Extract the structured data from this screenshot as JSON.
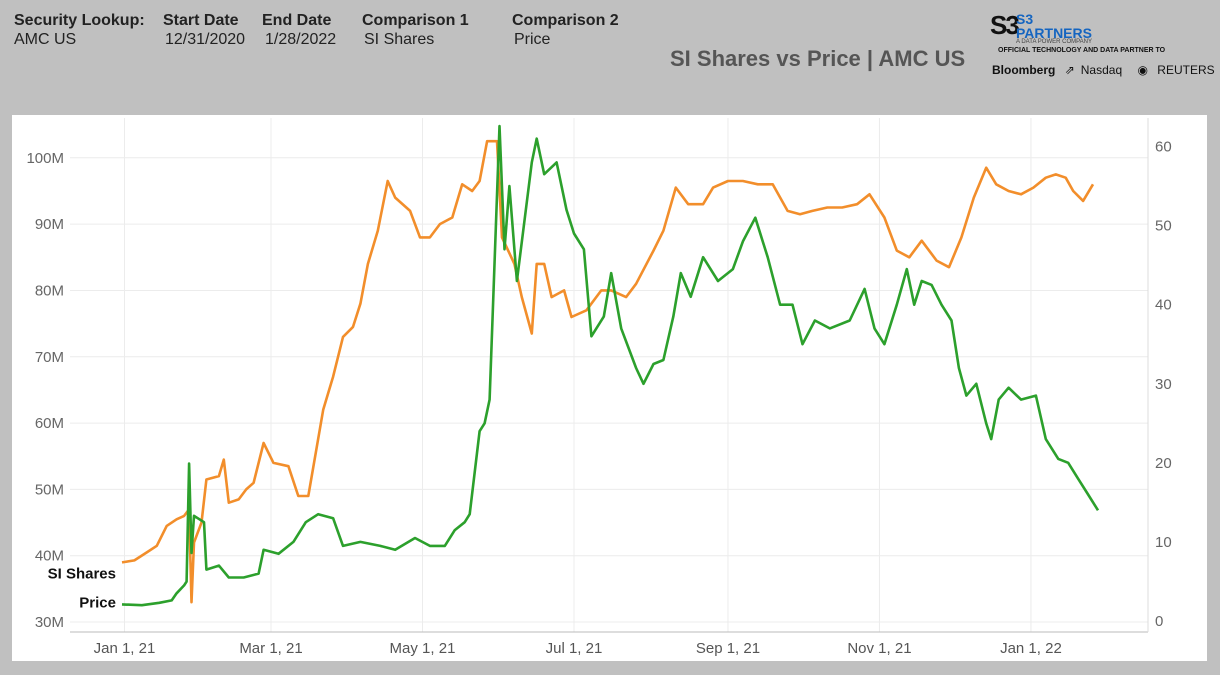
{
  "header": {
    "security_label": "Security Lookup:",
    "security_value": "AMC US",
    "start_label": "Start Date",
    "start_value": "12/31/2020",
    "end_label": "End Date",
    "end_value": "1/28/2022",
    "comp1_label": "Comparison 1",
    "comp1_value": "SI Shares",
    "comp2_label": "Comparison 2",
    "comp2_value": "Price"
  },
  "brand": {
    "mark": "S3",
    "name_line1": "S3",
    "name_line2": "PARTNERS",
    "sub": "A DATA POWER COMPANY",
    "partner_text": "OFFICIAL TECHNOLOGY AND DATA PARTNER TO",
    "partners": [
      "Bloomberg",
      "Nasdaq",
      "REUTERS"
    ]
  },
  "chart_data": {
    "type": "line",
    "title": "SI Shares vs Price | AMC US",
    "x_axis_start": "2020-12-31",
    "x_axis_end": "2022-01-28",
    "x_ticks": [
      {
        "label": "Jan 1, 21",
        "date": "2021-01-01"
      },
      {
        "label": "Mar 1, 21",
        "date": "2021-03-01"
      },
      {
        "label": "May 1, 21",
        "date": "2021-05-01"
      },
      {
        "label": "Jul 1, 21",
        "date": "2021-07-01"
      },
      {
        "label": "Sep 1, 21",
        "date": "2021-09-01"
      },
      {
        "label": "Nov 1, 21",
        "date": "2021-11-01"
      },
      {
        "label": "Jan 1, 22",
        "date": "2022-01-01"
      }
    ],
    "y_left": {
      "ylim": [
        30,
        105
      ],
      "ticks": [
        30,
        40,
        50,
        60,
        70,
        80,
        90,
        100
      ],
      "tick_labels": [
        "30M",
        "40M",
        "50M",
        "60M",
        "70M",
        "80M",
        "90M",
        "100M"
      ]
    },
    "y_right": {
      "ylim": [
        0,
        65
      ],
      "ticks": [
        0,
        10,
        20,
        30,
        40,
        50,
        60
      ],
      "tick_labels": [
        "0",
        "10",
        "20",
        "30",
        "40",
        "50",
        "60"
      ]
    },
    "grid": true,
    "series": [
      {
        "name": "SI Shares",
        "axis": "left",
        "color": "#f28e2b",
        "points": [
          [
            "2020-12-31",
            39.0
          ],
          [
            "2021-01-05",
            39.3
          ],
          [
            "2021-01-10",
            40.5
          ],
          [
            "2021-01-14",
            41.5
          ],
          [
            "2021-01-18",
            44.5
          ],
          [
            "2021-01-22",
            45.5
          ],
          [
            "2021-01-25",
            46.0
          ],
          [
            "2021-01-27",
            47.0
          ],
          [
            "2021-01-28",
            33.0
          ],
          [
            "2021-01-29",
            42.0
          ],
          [
            "2021-02-01",
            45.0
          ],
          [
            "2021-02-03",
            51.5
          ],
          [
            "2021-02-08",
            52.0
          ],
          [
            "2021-02-10",
            54.5
          ],
          [
            "2021-02-12",
            48.0
          ],
          [
            "2021-02-16",
            48.5
          ],
          [
            "2021-02-19",
            50.0
          ],
          [
            "2021-02-22",
            51.0
          ],
          [
            "2021-02-26",
            57.0
          ],
          [
            "2021-03-02",
            54.0
          ],
          [
            "2021-03-08",
            53.5
          ],
          [
            "2021-03-12",
            49.0
          ],
          [
            "2021-03-16",
            49.0
          ],
          [
            "2021-03-22",
            62.0
          ],
          [
            "2021-03-26",
            67.0
          ],
          [
            "2021-03-30",
            73.0
          ],
          [
            "2021-04-03",
            74.5
          ],
          [
            "2021-04-06",
            78.0
          ],
          [
            "2021-04-09",
            84.0
          ],
          [
            "2021-04-13",
            89.0
          ],
          [
            "2021-04-17",
            96.5
          ],
          [
            "2021-04-20",
            94.0
          ],
          [
            "2021-04-26",
            92.0
          ],
          [
            "2021-04-30",
            88.0
          ],
          [
            "2021-05-04",
            88.0
          ],
          [
            "2021-05-08",
            90.0
          ],
          [
            "2021-05-13",
            91.0
          ],
          [
            "2021-05-17",
            96.0
          ],
          [
            "2021-05-21",
            95.0
          ],
          [
            "2021-05-24",
            96.5
          ],
          [
            "2021-05-27",
            102.5
          ],
          [
            "2021-05-31",
            102.5
          ],
          [
            "2021-06-02",
            88.0
          ],
          [
            "2021-06-07",
            84.0
          ],
          [
            "2021-06-10",
            79.0
          ],
          [
            "2021-06-14",
            73.5
          ],
          [
            "2021-06-16",
            84.0
          ],
          [
            "2021-06-19",
            84.0
          ],
          [
            "2021-06-22",
            79.0
          ],
          [
            "2021-06-27",
            80.0
          ],
          [
            "2021-06-30",
            76.0
          ],
          [
            "2021-07-06",
            77.0
          ],
          [
            "2021-07-12",
            80.0
          ],
          [
            "2021-07-16",
            80.0
          ],
          [
            "2021-07-22",
            79.0
          ],
          [
            "2021-07-26",
            81.0
          ],
          [
            "2021-08-02",
            86.0
          ],
          [
            "2021-08-06",
            89.0
          ],
          [
            "2021-08-11",
            95.5
          ],
          [
            "2021-08-16",
            93.0
          ],
          [
            "2021-08-22",
            93.0
          ],
          [
            "2021-08-26",
            95.5
          ],
          [
            "2021-09-01",
            96.5
          ],
          [
            "2021-09-07",
            96.5
          ],
          [
            "2021-09-13",
            96.0
          ],
          [
            "2021-09-19",
            96.0
          ],
          [
            "2021-09-25",
            92.0
          ],
          [
            "2021-09-30",
            91.5
          ],
          [
            "2021-10-05",
            92.0
          ],
          [
            "2021-10-11",
            92.5
          ],
          [
            "2021-10-17",
            92.5
          ],
          [
            "2021-10-23",
            93.0
          ],
          [
            "2021-10-28",
            94.5
          ],
          [
            "2021-11-03",
            91.0
          ],
          [
            "2021-11-08",
            86.0
          ],
          [
            "2021-11-13",
            85.0
          ],
          [
            "2021-11-18",
            87.5
          ],
          [
            "2021-11-24",
            84.5
          ],
          [
            "2021-11-29",
            83.5
          ],
          [
            "2021-12-04",
            88.0
          ],
          [
            "2021-12-09",
            94.0
          ],
          [
            "2021-12-14",
            98.5
          ],
          [
            "2021-12-18",
            96.0
          ],
          [
            "2021-12-23",
            95.0
          ],
          [
            "2021-12-28",
            94.5
          ],
          [
            "2022-01-02",
            95.5
          ],
          [
            "2022-01-07",
            97.0
          ],
          [
            "2022-01-11",
            97.5
          ],
          [
            "2022-01-15",
            97.0
          ],
          [
            "2022-01-18",
            95.0
          ],
          [
            "2022-01-22",
            93.5
          ],
          [
            "2022-01-26",
            96.0
          ]
        ]
      },
      {
        "name": "Price",
        "axis": "right",
        "color": "#2ca02c",
        "points": [
          [
            "2020-12-31",
            2.1
          ],
          [
            "2021-01-08",
            2.0
          ],
          [
            "2021-01-15",
            2.3
          ],
          [
            "2021-01-20",
            2.6
          ],
          [
            "2021-01-22",
            3.5
          ],
          [
            "2021-01-25",
            4.5
          ],
          [
            "2021-01-26",
            5.0
          ],
          [
            "2021-01-27",
            19.9
          ],
          [
            "2021-01-28",
            8.6
          ],
          [
            "2021-01-29",
            13.3
          ],
          [
            "2021-02-02",
            12.5
          ],
          [
            "2021-02-03",
            6.5
          ],
          [
            "2021-02-08",
            7.0
          ],
          [
            "2021-02-12",
            5.5
          ],
          [
            "2021-02-18",
            5.5
          ],
          [
            "2021-02-24",
            6.0
          ],
          [
            "2021-02-26",
            9.0
          ],
          [
            "2021-03-04",
            8.5
          ],
          [
            "2021-03-10",
            10.0
          ],
          [
            "2021-03-15",
            12.5
          ],
          [
            "2021-03-20",
            13.5
          ],
          [
            "2021-03-26",
            13.0
          ],
          [
            "2021-03-30",
            9.5
          ],
          [
            "2021-04-06",
            10.0
          ],
          [
            "2021-04-14",
            9.5
          ],
          [
            "2021-04-20",
            9.0
          ],
          [
            "2021-04-28",
            10.5
          ],
          [
            "2021-05-04",
            9.5
          ],
          [
            "2021-05-10",
            9.5
          ],
          [
            "2021-05-14",
            11.5
          ],
          [
            "2021-05-18",
            12.5
          ],
          [
            "2021-05-20",
            13.5
          ],
          [
            "2021-05-24",
            24.0
          ],
          [
            "2021-05-26",
            25.0
          ],
          [
            "2021-05-28",
            28.0
          ],
          [
            "2021-06-01",
            62.6
          ],
          [
            "2021-06-03",
            47.0
          ],
          [
            "2021-06-05",
            55.0
          ],
          [
            "2021-06-08",
            43.0
          ],
          [
            "2021-06-14",
            58.0
          ],
          [
            "2021-06-16",
            61.0
          ],
          [
            "2021-06-19",
            56.5
          ],
          [
            "2021-06-24",
            58.0
          ],
          [
            "2021-06-28",
            52.0
          ],
          [
            "2021-07-01",
            49.0
          ],
          [
            "2021-07-05",
            47.0
          ],
          [
            "2021-07-08",
            36.0
          ],
          [
            "2021-07-13",
            38.5
          ],
          [
            "2021-07-16",
            44.0
          ],
          [
            "2021-07-20",
            37.0
          ],
          [
            "2021-07-26",
            32.0
          ],
          [
            "2021-07-29",
            30.0
          ],
          [
            "2021-08-02",
            32.5
          ],
          [
            "2021-08-06",
            33.0
          ],
          [
            "2021-08-10",
            38.5
          ],
          [
            "2021-08-13",
            44.0
          ],
          [
            "2021-08-17",
            41.0
          ],
          [
            "2021-08-22",
            46.0
          ],
          [
            "2021-08-28",
            43.0
          ],
          [
            "2021-09-03",
            44.5
          ],
          [
            "2021-09-07",
            48.0
          ],
          [
            "2021-09-12",
            51.0
          ],
          [
            "2021-09-17",
            46.0
          ],
          [
            "2021-09-22",
            40.0
          ],
          [
            "2021-09-27",
            40.0
          ],
          [
            "2021-10-01",
            35.0
          ],
          [
            "2021-10-06",
            38.0
          ],
          [
            "2021-10-12",
            37.0
          ],
          [
            "2021-10-20",
            38.0
          ],
          [
            "2021-10-26",
            42.0
          ],
          [
            "2021-10-30",
            37.0
          ],
          [
            "2021-11-03",
            35.0
          ],
          [
            "2021-11-08",
            40.0
          ],
          [
            "2021-11-12",
            44.5
          ],
          [
            "2021-11-15",
            40.0
          ],
          [
            "2021-11-18",
            43.0
          ],
          [
            "2021-11-22",
            42.5
          ],
          [
            "2021-11-26",
            40.0
          ],
          [
            "2021-11-30",
            38.0
          ],
          [
            "2021-12-03",
            32.0
          ],
          [
            "2021-12-06",
            28.5
          ],
          [
            "2021-12-10",
            30.0
          ],
          [
            "2021-12-14",
            25.0
          ],
          [
            "2021-12-16",
            23.0
          ],
          [
            "2021-12-19",
            28.0
          ],
          [
            "2021-12-23",
            29.5
          ],
          [
            "2021-12-28",
            28.0
          ],
          [
            "2022-01-03",
            28.5
          ],
          [
            "2022-01-07",
            23.0
          ],
          [
            "2022-01-12",
            20.5
          ],
          [
            "2022-01-16",
            20.0
          ],
          [
            "2022-01-20",
            18.0
          ],
          [
            "2022-01-24",
            16.0
          ],
          [
            "2022-01-28",
            14.0
          ]
        ]
      }
    ]
  }
}
